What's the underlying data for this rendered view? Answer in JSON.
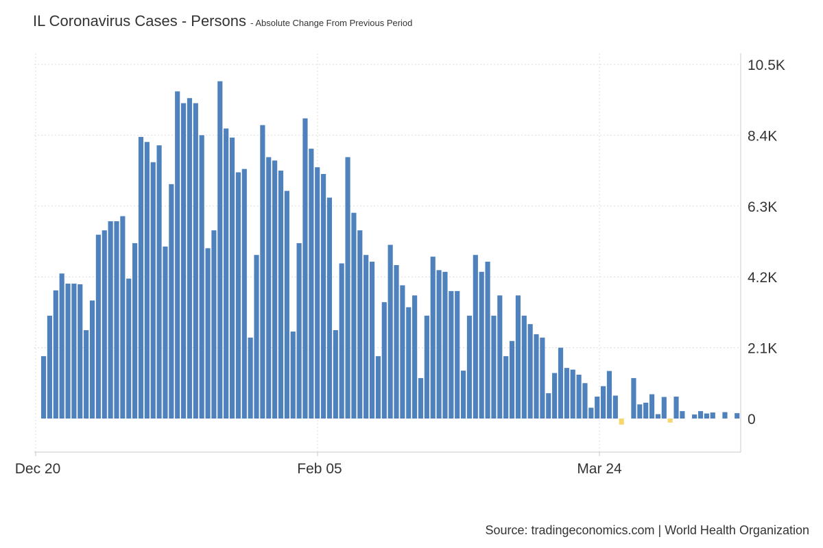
{
  "header": {
    "title": "IL Coronavirus Cases - Persons",
    "subtitle": "- Absolute Change From Previous Period"
  },
  "footer": {
    "source": "Source: tradingeconomics.com | World Health Organization"
  },
  "colors": {
    "positive_bar": "#4f81bd",
    "negative_bar": "#f5d76e",
    "grid": "#dcdcdc",
    "axis": "#c8c8c8"
  },
  "chart_data": {
    "type": "bar",
    "title": "IL Coronavirus Cases - Persons",
    "subtitle": "- Absolute Change From Previous Period",
    "xlabel": "",
    "ylabel": "",
    "x_ticks": [
      "Dec 20",
      "Feb 05",
      "Mar 24"
    ],
    "y_ticks": [
      {
        "value": 0,
        "label": "0"
      },
      {
        "value": 2100,
        "label": "2.1K"
      },
      {
        "value": 4200,
        "label": "4.2K"
      },
      {
        "value": 6300,
        "label": "6.3K"
      },
      {
        "value": 8400,
        "label": "8.4K"
      },
      {
        "value": 10500,
        "label": "10.5K"
      }
    ],
    "ylim": [
      -1000,
      10500
    ],
    "grid": true,
    "legend": "none",
    "series": [
      {
        "values": [
          1850,
          3050,
          3800,
          4300,
          4000,
          4000,
          3980,
          2620,
          3500,
          5450,
          5580,
          5850,
          5850,
          6000,
          4150,
          5200,
          8350,
          8200,
          7600,
          8100,
          5100,
          6950,
          9700,
          9350,
          9500,
          9350,
          8400,
          5050,
          5580,
          10000,
          8600,
          8330,
          7300,
          7400,
          2400,
          4850,
          8700,
          7750,
          7650,
          7350,
          6750,
          2580,
          5200,
          8900,
          8000,
          7450,
          7250,
          6550,
          2620,
          4600,
          7750,
          6100,
          5580,
          4850,
          4650,
          1850,
          3450,
          5150,
          4550,
          3950,
          3300,
          3650,
          1200,
          3050,
          4800,
          4400,
          4350,
          3780,
          3780,
          1420,
          3050,
          4850,
          4350,
          4650,
          3050,
          3650,
          1850,
          2300,
          3650,
          3050,
          2800,
          2500,
          2400,
          750,
          1350,
          2100,
          1500,
          1450,
          1300,
          1050,
          320,
          650,
          960,
          1410,
          680,
          -180,
          0,
          1200,
          420,
          470,
          720,
          130,
          640,
          -120,
          650,
          220,
          0,
          120,
          220,
          150,
          180,
          0,
          190,
          0,
          160
        ]
      }
    ]
  }
}
